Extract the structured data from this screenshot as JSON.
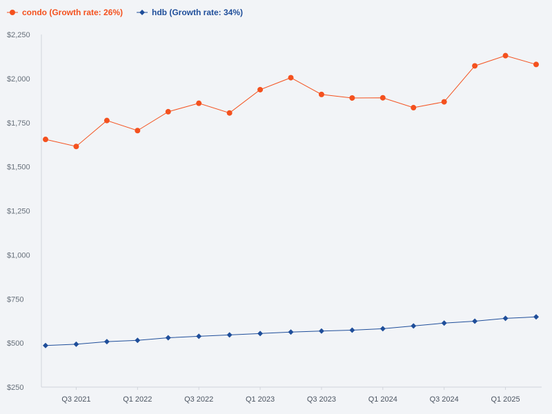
{
  "chart_data": {
    "type": "line",
    "title": "",
    "xlabel": "",
    "ylabel": "",
    "ylim": [
      250,
      2250
    ],
    "yticks": [
      250,
      500,
      750,
      1000,
      1250,
      1500,
      1750,
      2000,
      2250
    ],
    "ytick_labels": [
      "$250",
      "$500",
      "$750",
      "$1,000",
      "$1,250",
      "$1,500",
      "$1,750",
      "$2,000",
      "$2,250"
    ],
    "categories": [
      "Q2 2021",
      "Q3 2021",
      "Q4 2021",
      "Q1 2022",
      "Q2 2022",
      "Q3 2022",
      "Q4 2022",
      "Q1 2023",
      "Q2 2023",
      "Q3 2023",
      "Q4 2023",
      "Q1 2024",
      "Q2 2024",
      "Q3 2024",
      "Q4 2024",
      "Q1 2025",
      "Q2 2025"
    ],
    "xtick_labels": [
      "Q3 2021",
      "Q1 2022",
      "Q3 2022",
      "Q1 2023",
      "Q3 2023",
      "Q1 2024",
      "Q3 2024",
      "Q1 2025"
    ],
    "grid": false,
    "legend_position": "top-left",
    "series": [
      {
        "name": "condo (Growth rate: 26%)",
        "color": "#f4511e",
        "marker": "circle",
        "values": [
          1655,
          1615,
          1762,
          1705,
          1812,
          1860,
          1805,
          1937,
          2005,
          1910,
          1890,
          1891,
          1835,
          1868,
          2072,
          2130,
          2080
        ]
      },
      {
        "name": "hdb (Growth rate: 34%)",
        "color": "#1f4e9a",
        "marker": "diamond",
        "values": [
          486,
          493,
          508,
          515,
          530,
          538,
          546,
          554,
          562,
          568,
          573,
          581,
          597,
          613,
          624,
          640,
          648
        ]
      }
    ]
  }
}
